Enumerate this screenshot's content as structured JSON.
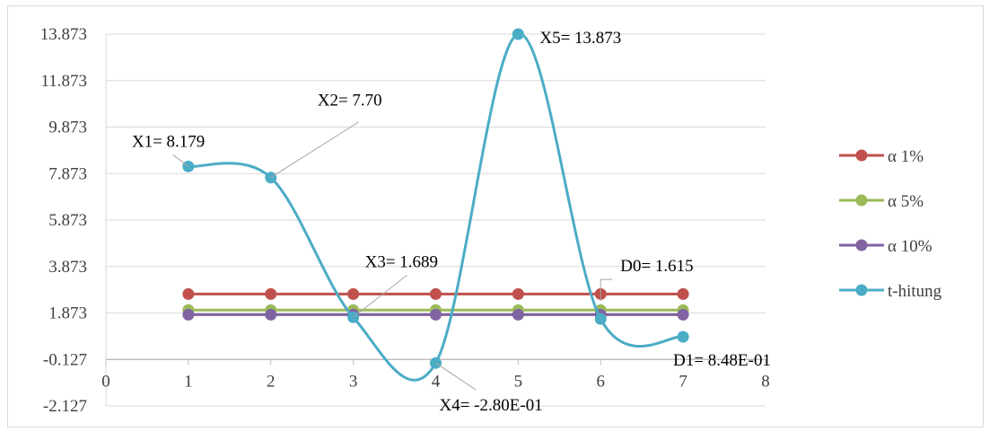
{
  "chart_data": {
    "type": "line",
    "title": "",
    "xlabel": "",
    "ylabel": "",
    "xlim": [
      0,
      8
    ],
    "ylim": [
      -2.127,
      13.873
    ],
    "x_ticks": [
      "0",
      "1",
      "2",
      "3",
      "4",
      "5",
      "6",
      "7",
      "8"
    ],
    "y_ticks": [
      "13.873",
      "11.873",
      "9.873",
      "7.873",
      "5.873",
      "3.873",
      "1.873",
      "-0.127",
      "-2.127"
    ],
    "grid": true,
    "legend_position": "right",
    "x": [
      1,
      2,
      3,
      4,
      5,
      6,
      7
    ],
    "series": [
      {
        "name": "α 1%",
        "color": "#c0504d",
        "values": [
          2.69,
          2.69,
          2.69,
          2.69,
          2.69,
          2.69,
          2.69
        ]
      },
      {
        "name": "α 5%",
        "color": "#9bbb59",
        "values": [
          2.0,
          2.0,
          2.0,
          2.0,
          2.0,
          2.0,
          2.0
        ]
      },
      {
        "name": "α 10%",
        "color": "#8064a2",
        "values": [
          1.8,
          1.8,
          1.8,
          1.8,
          1.8,
          1.8,
          1.8
        ]
      },
      {
        "name": "t-hitung",
        "color": "#4bacc6",
        "values": [
          8.179,
          7.7,
          1.689,
          -0.28,
          13.873,
          1.615,
          0.848
        ]
      }
    ],
    "annotations": [
      {
        "text": "X1= 8.179",
        "x": 1,
        "y": 8.179
      },
      {
        "text": "X2= 7.70",
        "x": 2,
        "y": 7.7
      },
      {
        "text": "X3= 1.689",
        "x": 3,
        "y": 1.689
      },
      {
        "text": "X4= -2.80E-01",
        "x": 4,
        "y": -0.28
      },
      {
        "text": "X5= 13.873",
        "x": 5,
        "y": 13.873
      },
      {
        "text": "D0= 1.615",
        "x": 6,
        "y": 1.615
      },
      {
        "text": "D1= 8.48E-01",
        "x": 7,
        "y": 0.848
      }
    ]
  }
}
